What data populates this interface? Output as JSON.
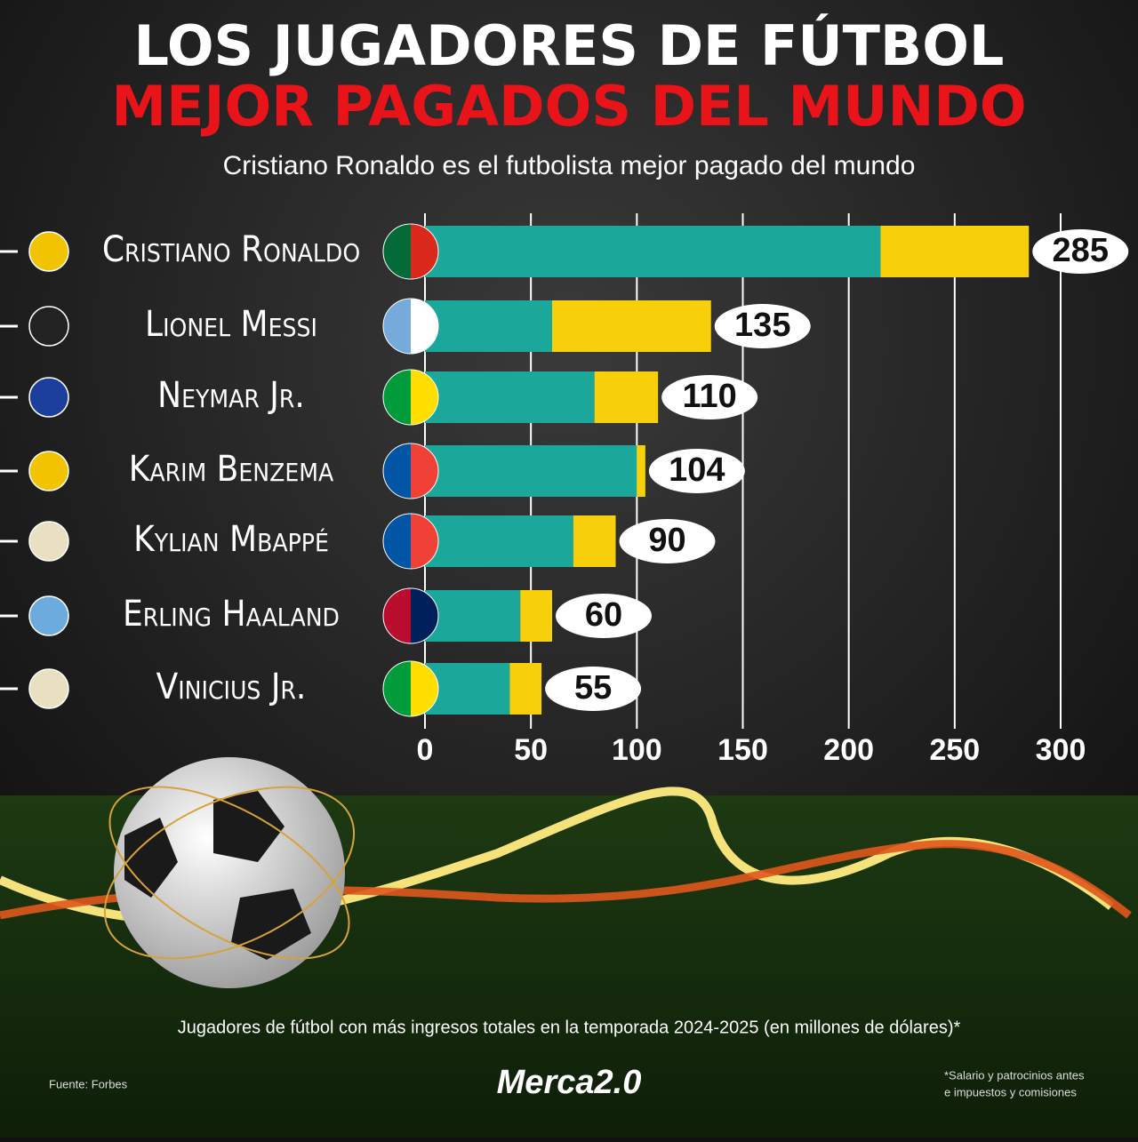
{
  "chart_data": {
    "type": "bar",
    "orientation": "horizontal",
    "stacked": true,
    "title": "LOS JUGADORES DE FÚTBOL",
    "title_highlight": "MEJOR PAGADOS DEL MUNDO",
    "subtitle": "Cristiano Ronaldo es el futbolista mejor pagado del mundo",
    "categories": [
      "Cristiano Ronaldo",
      "Lionel Messi",
      "Neymar Jr.",
      "Karim Benzema",
      "Kylian Mbappé",
      "Erling Haaland",
      "Vinicius Jr."
    ],
    "series": [
      {
        "color": "#1ba89a",
        "values": [
          215,
          60,
          80,
          100,
          70,
          45,
          40
        ]
      },
      {
        "color": "#f7cf0a",
        "values": [
          70,
          75,
          30,
          4,
          20,
          15,
          15
        ]
      }
    ],
    "totals": [
      285,
      135,
      110,
      104,
      90,
      60,
      55
    ],
    "xlim": [
      0,
      300
    ],
    "xticks": [
      0,
      50,
      100,
      150,
      200,
      250,
      300
    ],
    "grid": true,
    "caption": "Jugadores de fútbol con más ingresos totales en la temporada 2024-2025 (en millones de dólares)*",
    "source": "Fuente: Forbes",
    "brand": "Merca2.0",
    "note_lines": [
      "*Salario y patrocinios antes",
      "e impuestos y comisiones"
    ]
  }
}
